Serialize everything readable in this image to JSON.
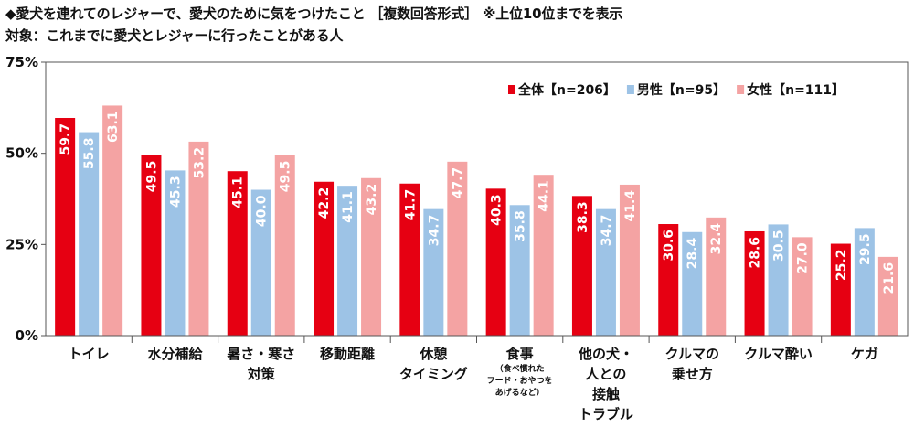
{
  "header": {
    "title": "◆愛犬を連れてのレジャーで、愛犬のために気をつけたこと ［複数回答形式］ ※上位10位までを表示",
    "subtitle": "対象：これまでに愛犬とレジャーに行ったことがある人"
  },
  "colors": {
    "all": "#e60012",
    "male": "#9dc3e6",
    "female": "#f4a3a3"
  },
  "chart_data": {
    "type": "bar",
    "categories": [
      {
        "lines": [
          "トイレ"
        ],
        "sub": []
      },
      {
        "lines": [
          "水分補給"
        ],
        "sub": []
      },
      {
        "lines": [
          "暑さ・寒さ",
          "対策"
        ],
        "sub": []
      },
      {
        "lines": [
          "移動距離"
        ],
        "sub": []
      },
      {
        "lines": [
          "休憩",
          "タイミング"
        ],
        "sub": []
      },
      {
        "lines": [
          "食事"
        ],
        "sub": [
          "（食べ慣れた",
          "フード・おやつを",
          "あげるなど）"
        ]
      },
      {
        "lines": [
          "他の犬・",
          "人との",
          "接触",
          "トラブル"
        ],
        "sub": []
      },
      {
        "lines": [
          "クルマの",
          "乗せ方"
        ],
        "sub": []
      },
      {
        "lines": [
          "クルマ酔い"
        ],
        "sub": []
      },
      {
        "lines": [
          "ケガ"
        ],
        "sub": []
      }
    ],
    "series": [
      {
        "name": "全体【n=206】",
        "color": "#e60012",
        "values": [
          59.7,
          49.5,
          45.1,
          42.2,
          41.7,
          40.3,
          38.3,
          30.6,
          28.6,
          25.2
        ]
      },
      {
        "name": "男性【n=95】",
        "color": "#9dc3e6",
        "values": [
          55.8,
          45.3,
          40.0,
          41.1,
          34.7,
          35.8,
          34.7,
          28.4,
          30.5,
          29.5
        ]
      },
      {
        "name": "女性【n=111】",
        "color": "#f4a3a3",
        "values": [
          63.1,
          53.2,
          49.5,
          43.2,
          47.7,
          44.1,
          41.4,
          32.4,
          27.0,
          21.6
        ]
      }
    ],
    "yticks": [
      "0%",
      "25%",
      "50%",
      "75%"
    ],
    "ylim": [
      0,
      75
    ],
    "legend_position": "top-right",
    "grid": false
  }
}
